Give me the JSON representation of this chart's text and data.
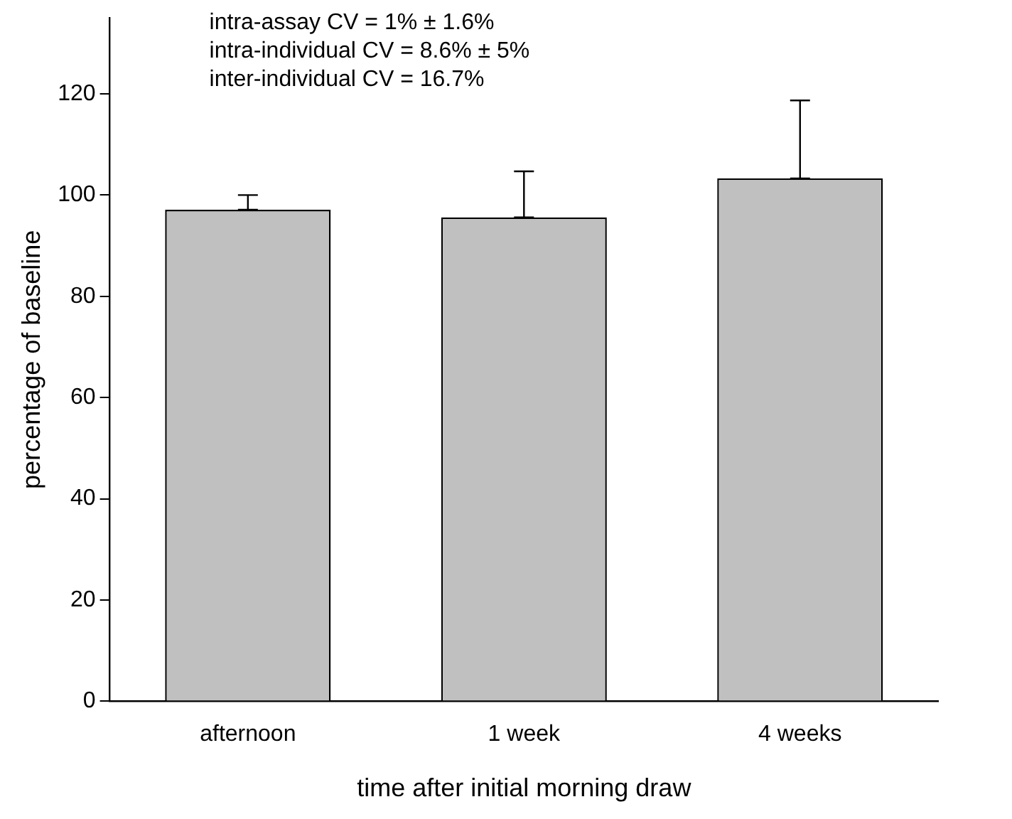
{
  "chart_data": {
    "type": "bar",
    "xlabel": "time after initial morning draw",
    "ylabel": "percentage of baseline",
    "categories": [
      "afternoon",
      "1 week",
      "4 weeks"
    ],
    "values": [
      97.1,
      95.6,
      103.3
    ],
    "errors": [
      [
        97.1,
        100
      ],
      [
        95.6,
        104.7
      ],
      [
        103.3,
        118.7
      ]
    ],
    "color": "#c0c0c0",
    "ylim": [
      0,
      135
    ],
    "yticks": [
      0,
      20,
      40,
      60,
      80,
      100,
      120
    ],
    "grid": false,
    "legend": false,
    "annotations": [
      "intra-assay CV = 1% ± 1.6%",
      "intra-individual CV = 8.6% ± 5%",
      "inter-individual CV = 16.7%"
    ]
  }
}
